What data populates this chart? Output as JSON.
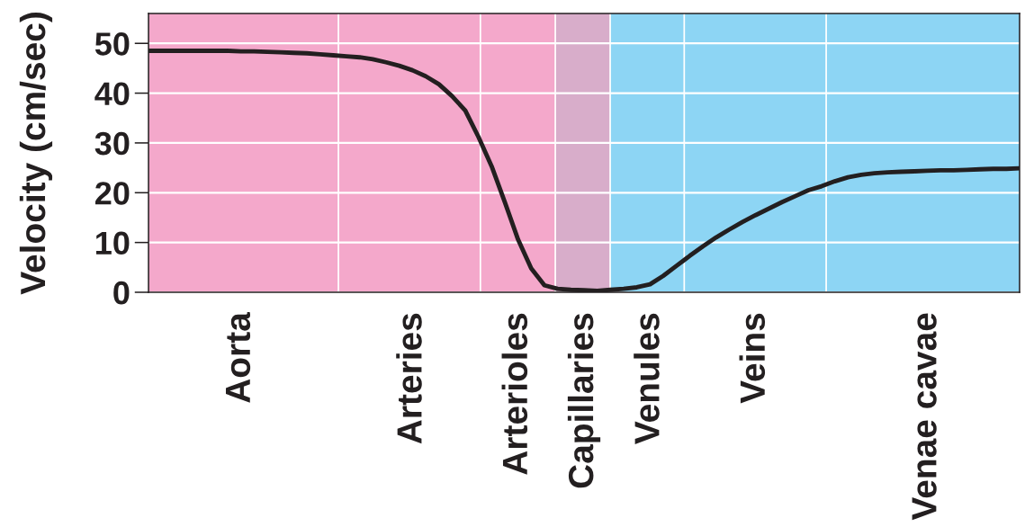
{
  "chart_data": {
    "type": "line",
    "ylabel": "Velocity (cm/sec)",
    "categories": [
      null,
      null,
      null,
      null,
      null,
      null,
      null,
      "Aorta",
      null,
      null,
      null,
      null,
      null,
      null,
      null,
      null,
      null,
      null,
      null,
      null,
      "Arteries",
      null,
      null,
      null,
      null,
      null,
      null,
      null,
      "Arterioles",
      null,
      null,
      null,
      null,
      "Capillaries",
      null,
      null,
      null,
      null,
      "Venules",
      null,
      null,
      null,
      null,
      null,
      null,
      null,
      "Veins",
      null,
      null,
      null,
      null,
      null,
      null,
      null,
      null,
      null,
      null,
      null,
      null,
      "Venae cavae",
      null,
      null,
      null,
      null,
      null,
      null,
      null
    ],
    "series": [
      {
        "color": "#231f20",
        "values": [
          48.5,
          48.5,
          48.5,
          48.5,
          48.5,
          48.5,
          48.5,
          48.4,
          48.4,
          48.3,
          48.2,
          48.1,
          48.0,
          47.8,
          47.6,
          47.4,
          47.2,
          46.8,
          46.2,
          45.5,
          44.6,
          43.4,
          41.8,
          39.4,
          36.5,
          31.2,
          25.3,
          18.1,
          10.6,
          4.8,
          1.4,
          0.7,
          0.5,
          0.4,
          0.3,
          0.5,
          0.7,
          1.0,
          1.6,
          3.3,
          5.3,
          7.3,
          9.2,
          11.0,
          12.6,
          14.1,
          15.5,
          16.8,
          18.1,
          19.3,
          20.5,
          21.3,
          22.3,
          23.1,
          23.6,
          23.9,
          24.1,
          24.2,
          24.3,
          24.4,
          24.5,
          24.5,
          24.6,
          24.7,
          24.8,
          24.8,
          24.9
        ]
      }
    ],
    "ylim": [
      0,
      56
    ],
    "yticks": [
      0,
      10,
      20,
      30,
      40,
      50
    ],
    "grid": "y",
    "line_style": "solid"
  }
}
